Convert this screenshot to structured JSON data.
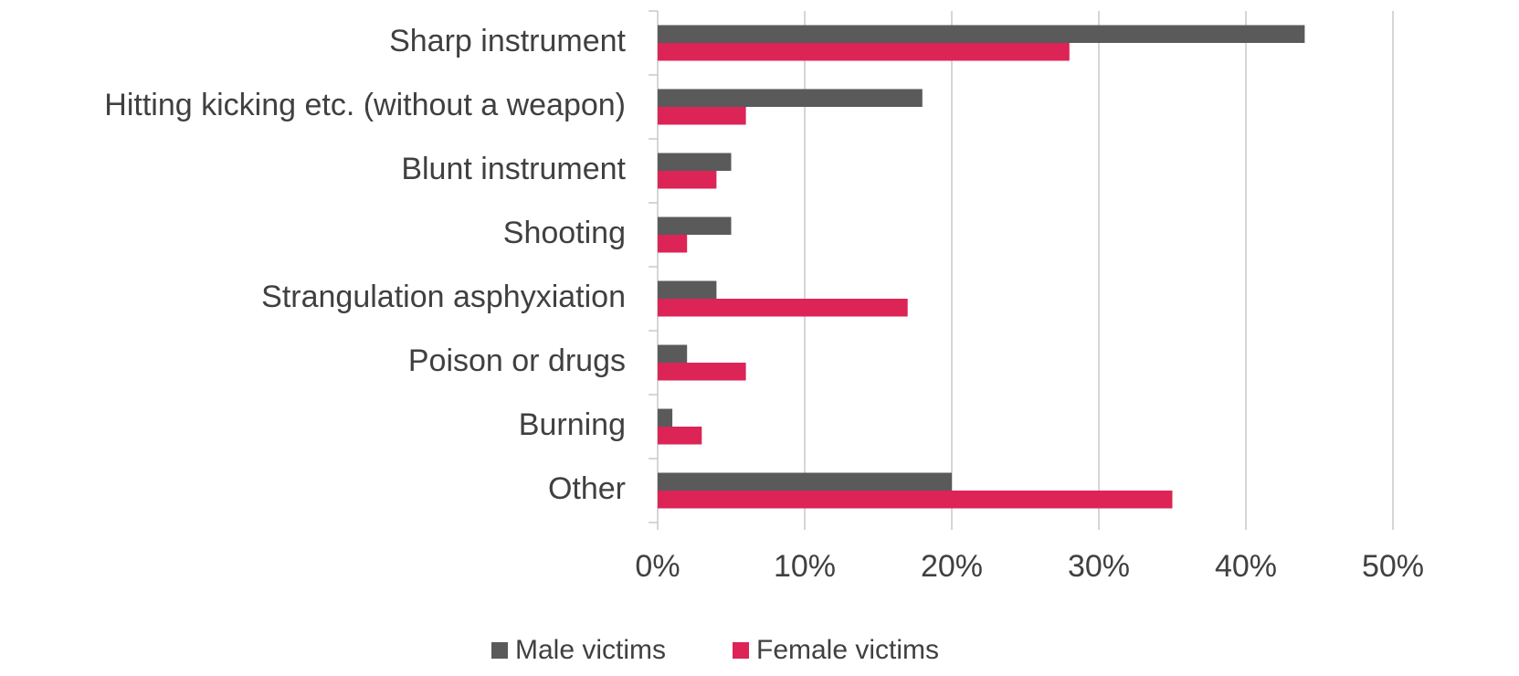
{
  "chart_data": {
    "type": "hbar",
    "categories": [
      "Sharp instrument",
      "Hitting kicking etc. (without a weapon)",
      "Blunt instrument",
      "Shooting",
      "Strangulation asphyxiation",
      "Poison or drugs",
      "Burning",
      "Other"
    ],
    "series": [
      {
        "name": "Male victims",
        "color": "#5a5a5a",
        "values": [
          44,
          18,
          5,
          5,
          4,
          2,
          1,
          20
        ]
      },
      {
        "name": "Female victims",
        "color": "#dc2456",
        "values": [
          28,
          6,
          4,
          2,
          17,
          6,
          3,
          35
        ]
      }
    ],
    "xlim": [
      0,
      50
    ],
    "xticks": [
      {
        "value": 0,
        "label": "0%"
      },
      {
        "value": 10,
        "label": "10%"
      },
      {
        "value": 20,
        "label": "20%"
      },
      {
        "value": 30,
        "label": "30%"
      },
      {
        "value": 40,
        "label": "40%"
      },
      {
        "value": 50,
        "label": "50%"
      }
    ],
    "grid": true,
    "legend": "bottom"
  }
}
